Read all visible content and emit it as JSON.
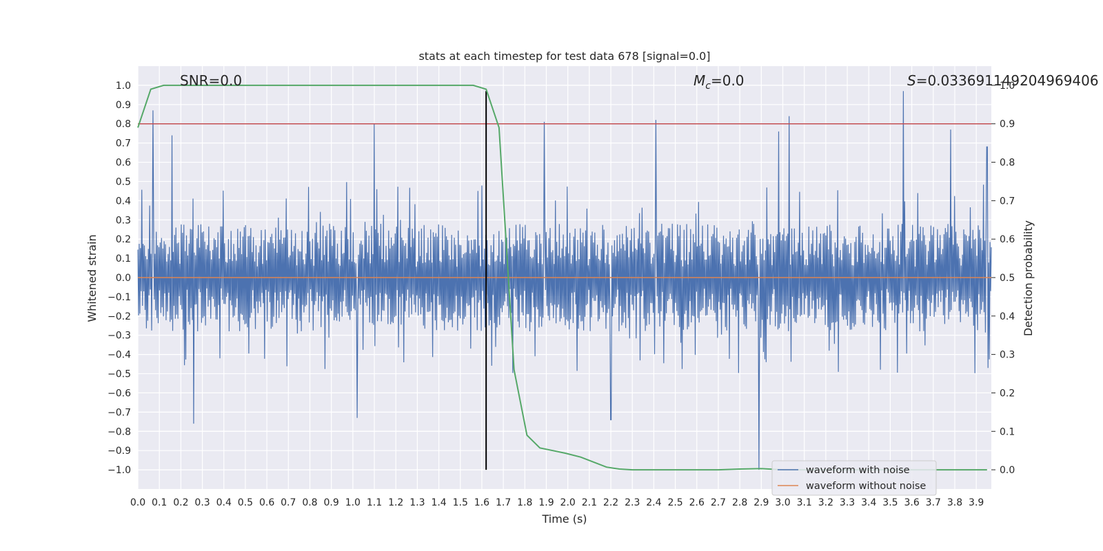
{
  "chart_data": {
    "type": "line",
    "title": "stats at each timestep for test data 678 [signal=0.0]",
    "xlabel": "Time (s)",
    "ylabel": "Whitened strain",
    "y2label": "Detection probability",
    "xlim": [
      0.0,
      3.97
    ],
    "ylim": [
      -1.1,
      1.1
    ],
    "y2lim": [
      -0.05,
      1.05
    ],
    "x_ticks": [
      0.0,
      0.1,
      0.2,
      0.3,
      0.4,
      0.5,
      0.6,
      0.7,
      0.8,
      0.9,
      1.0,
      1.1,
      1.2,
      1.3,
      1.4,
      1.5,
      1.6,
      1.7,
      1.8,
      1.9,
      2.0,
      2.1,
      2.2,
      2.3,
      2.4,
      2.5,
      2.6,
      2.7,
      2.8,
      2.9,
      3.0,
      3.1,
      3.2,
      3.3,
      3.4,
      3.5,
      3.6,
      3.7,
      3.8,
      3.9
    ],
    "x_tick_labels": [
      "0.0",
      "0.1",
      "0.2",
      "0.3",
      "0.4",
      "0.5",
      "0.6",
      "0.7",
      "0.8",
      "0.9",
      "1.0",
      "1.1",
      "1.2",
      "1.3",
      "1.4",
      "1.5",
      "1.6",
      "1.7",
      "1.8",
      "1.9",
      "2.0",
      "2.1",
      "2.2",
      "2.3",
      "2.4",
      "2.5",
      "2.6",
      "2.7",
      "2.8",
      "2.9",
      "3.0",
      "3.1",
      "3.2",
      "3.3",
      "3.4",
      "3.5",
      "3.6",
      "3.7",
      "3.8",
      "3.9"
    ],
    "y_ticks": [
      -1.0,
      -0.9,
      -0.8,
      -0.7,
      -0.6,
      -0.5,
      -0.4,
      -0.3,
      -0.2,
      -0.1,
      0.0,
      0.1,
      0.2,
      0.3,
      0.4,
      0.5,
      0.6,
      0.7,
      0.8,
      0.9,
      1.0
    ],
    "y_tick_labels": [
      "−1.0",
      "−0.9",
      "−0.8",
      "−0.7",
      "−0.6",
      "−0.5",
      "−0.4",
      "−0.3",
      "−0.2",
      "−0.1",
      "0.0",
      "0.1",
      "0.2",
      "0.3",
      "0.4",
      "0.5",
      "0.6",
      "0.7",
      "0.8",
      "0.9",
      "1.0"
    ],
    "y2_ticks": [
      0.0,
      0.1,
      0.2,
      0.3,
      0.4,
      0.5,
      0.6,
      0.7,
      0.8,
      0.9,
      1.0
    ],
    "y2_tick_labels": [
      "0.0",
      "0.1",
      "0.2",
      "0.3",
      "0.4",
      "0.5",
      "0.6",
      "0.7",
      "0.8",
      "0.9",
      "1.0"
    ],
    "grid": true,
    "legend": {
      "placement": "lower-right"
    },
    "series": [
      {
        "name": "waveform with noise",
        "axis": "left",
        "color": "#4c72b0",
        "description_values": "dense noise, |strain| mostly within 0.6, peaks near 0.87, 0.97, 0.84, dip near -1.0 at 2.89 s",
        "noise_amplitude": 0.28,
        "peaks": [
          {
            "x": 0.07,
            "y": 0.87
          },
          {
            "x": 0.16,
            "y": 0.74
          },
          {
            "x": 0.26,
            "y": -0.76
          },
          {
            "x": 1.1,
            "y": 0.8
          },
          {
            "x": 1.02,
            "y": -0.73
          },
          {
            "x": 1.89,
            "y": 0.81
          },
          {
            "x": 2.2,
            "y": -0.74
          },
          {
            "x": 2.41,
            "y": 0.82
          },
          {
            "x": 2.89,
            "y": -1.0
          },
          {
            "x": 3.03,
            "y": 0.84
          },
          {
            "x": 2.98,
            "y": 0.76
          },
          {
            "x": 3.56,
            "y": 0.97
          },
          {
            "x": 3.78,
            "y": 0.77
          },
          {
            "x": 3.95,
            "y": 0.68
          }
        ]
      },
      {
        "name": "waveform without noise",
        "axis": "left",
        "color": "#dd8452",
        "x": [
          0.0,
          3.97
        ],
        "y": [
          0.0,
          0.0
        ]
      },
      {
        "name": "",
        "axis": "right",
        "color": "#55a868",
        "x": [
          0.0,
          0.06,
          0.12,
          0.18,
          1.56,
          1.62,
          1.68,
          1.75,
          1.81,
          1.87,
          1.93,
          1.99,
          2.06,
          2.12,
          2.18,
          2.24,
          2.3,
          2.7,
          2.8,
          2.9,
          3.0,
          3.95
        ],
        "y": [
          0.89,
          0.99,
          1.0,
          1.0,
          1.0,
          0.99,
          0.89,
          0.26,
          0.09,
          0.057,
          0.05,
          0.043,
          0.033,
          0.02,
          0.007,
          0.002,
          0.0,
          0.0,
          0.002,
          0.003,
          0.0,
          0.0
        ]
      }
    ],
    "threshold": {
      "axis": "right",
      "value": 0.9,
      "color": "#c44e52"
    },
    "vline": {
      "x": 1.62,
      "y_range": [
        -1.0,
        0.97
      ],
      "color": "#000000"
    },
    "annotations": {
      "snr": "SNR=0.0",
      "mc_symbol": "M",
      "mc_sub": "c",
      "mc_value": "=0.0",
      "s_symbol": "S",
      "s_value": "=0.033691149204969406"
    }
  }
}
